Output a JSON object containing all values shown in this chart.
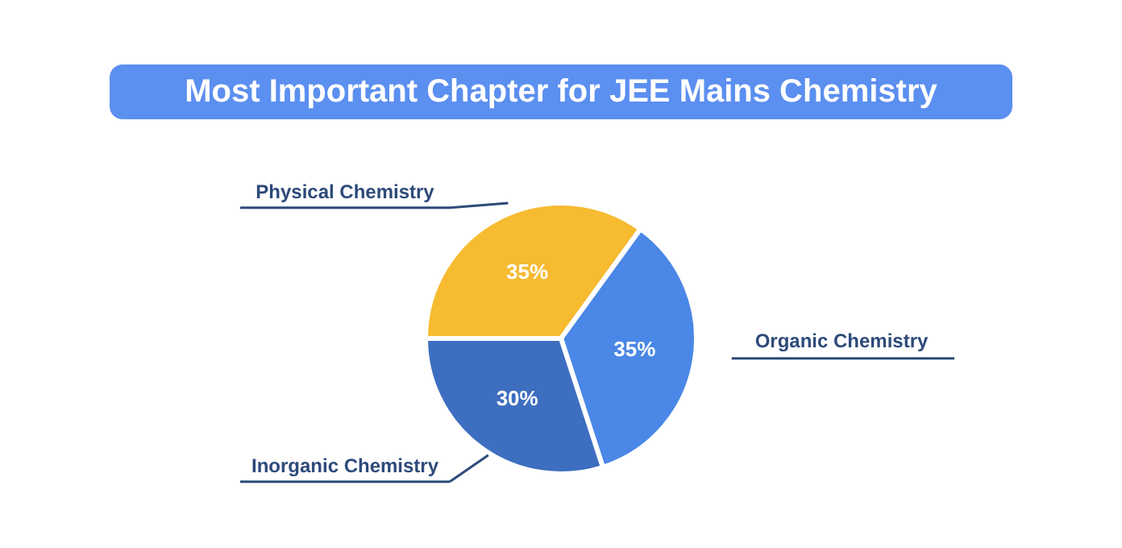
{
  "chart_data": {
    "type": "pie",
    "title": "Most Important Chapter for JEE Mains Chemistry",
    "categories": [
      "Physical Chemistry",
      "Organic Chemistry",
      "Inorganic Chemistry"
    ],
    "values": [
      35,
      35,
      30
    ],
    "colors": [
      "#f6bb31",
      "#4a87e6",
      "#3d6ec0"
    ],
    "value_labels": [
      "35%",
      "35%",
      "30%"
    ]
  }
}
